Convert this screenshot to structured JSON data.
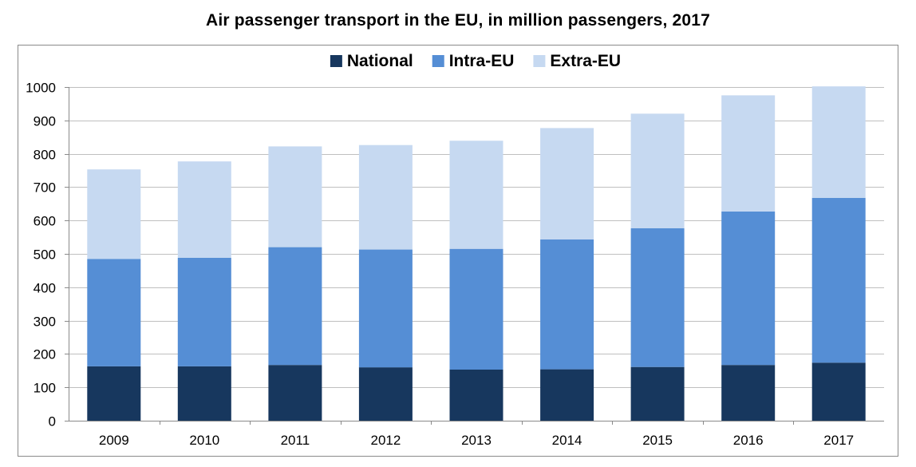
{
  "chart_data": {
    "type": "bar",
    "stacked": true,
    "title": "Air passenger transport in the EU, in million passengers, 2017",
    "xlabel": "",
    "ylabel": "",
    "categories": [
      "2009",
      "2010",
      "2011",
      "2012",
      "2013",
      "2014",
      "2015",
      "2016",
      "2017"
    ],
    "series": [
      {
        "name": "National",
        "color": "#17375e",
        "values": [
          163,
          163,
          167,
          160,
          153,
          154,
          161,
          167,
          174
        ]
      },
      {
        "name": "Intra-EU",
        "color": "#558ed5",
        "values": [
          322,
          325,
          353,
          353,
          362,
          389,
          416,
          460,
          494
        ]
      },
      {
        "name": "Extra-EU",
        "color": "#c6d9f1",
        "values": [
          268,
          289,
          302,
          313,
          324,
          334,
          343,
          348,
          334
        ]
      }
    ],
    "ylim": [
      0,
      1000
    ],
    "yticks": [
      0,
      100,
      200,
      300,
      400,
      500,
      600,
      700,
      800,
      900,
      1000
    ],
    "grid": true,
    "legend_position": "top"
  }
}
